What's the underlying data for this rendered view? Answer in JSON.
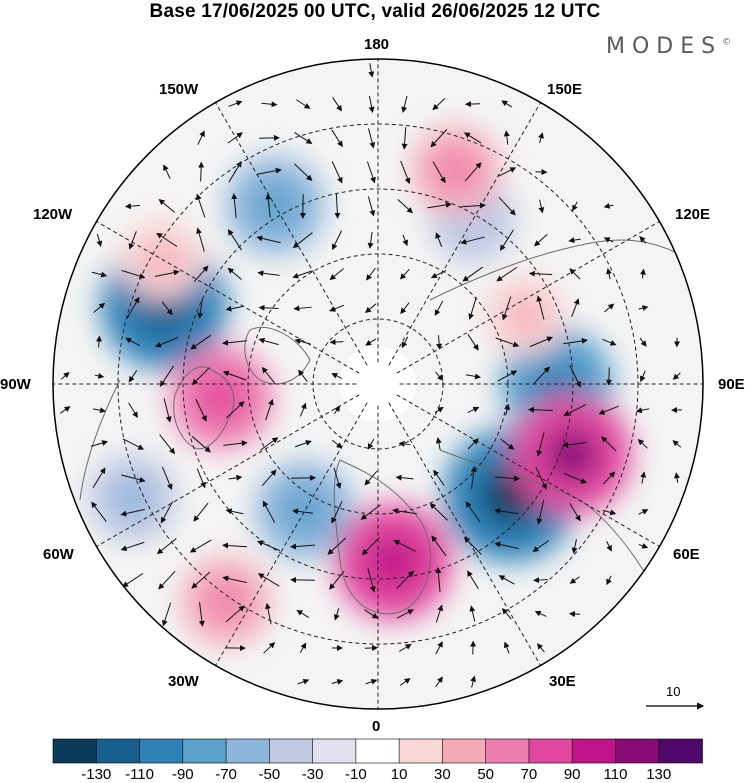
{
  "title": "Base 17/06/2025 00 UTC, valid 26/06/2025 12 UTC",
  "brand": "MODES",
  "brand_mark": "©",
  "longitude_labels": {
    "lon_180": "180",
    "lon_150e": "150E",
    "lon_120e": "120E",
    "lon_90e": "90E",
    "lon_60e": "60E",
    "lon_30e": "30E",
    "lon_0": "0",
    "lon_30w": "30W",
    "lon_60w": "60W",
    "lon_90w": "90W",
    "lon_120w": "120W",
    "lon_150w": "150W"
  },
  "vector_reference": {
    "label": "10"
  },
  "colorbar": {
    "ticks": [
      "-130",
      "-110",
      "-90",
      "-70",
      "-50",
      "-30",
      "-10",
      "10",
      "30",
      "50",
      "70",
      "90",
      "110",
      "130"
    ],
    "colors": [
      "#0c3a5b",
      "#165f8f",
      "#2f82b8",
      "#5aa2cd",
      "#8eb6dc",
      "#bfc9e4",
      "#e2e2ef",
      "#ffffff",
      "#f9d6d6",
      "#f5aab8",
      "#ef7db0",
      "#e2479f",
      "#c1148a",
      "#8a0a7a",
      "#50076a"
    ]
  },
  "anomaly_cells": [
    {
      "name": "blue",
      "lon": -150,
      "colat": 38,
      "value": -55
    },
    {
      "name": "blue",
      "lon": -110,
      "colat": 42,
      "value": -95
    },
    {
      "name": "blue",
      "lon": 90,
      "colat": 33,
      "value": -75
    },
    {
      "name": "blue",
      "lon": 50,
      "colat": 32,
      "value": -105
    },
    {
      "name": "blue",
      "lon": -30,
      "colat": 27,
      "value": -55
    },
    {
      "name": "blue",
      "lon": -65,
      "colat": 50,
      "value": -40
    },
    {
      "name": "blue",
      "lon": 150,
      "colat": 35,
      "value": -35
    },
    {
      "name": "red",
      "lon": 160,
      "colat": 42,
      "value": 40
    },
    {
      "name": "red",
      "lon": -85,
      "colat": 29,
      "value": 60
    },
    {
      "name": "red",
      "lon": 5,
      "colat": 33,
      "value": 80
    },
    {
      "name": "red",
      "lon": 70,
      "colat": 38,
      "value": 85
    },
    {
      "name": "red",
      "lon": -35,
      "colat": 49,
      "value": 40
    },
    {
      "name": "red",
      "lon": 115,
      "colat": 30,
      "value": 30
    },
    {
      "name": "red",
      "lon": -120,
      "colat": 46,
      "value": 30
    }
  ]
}
